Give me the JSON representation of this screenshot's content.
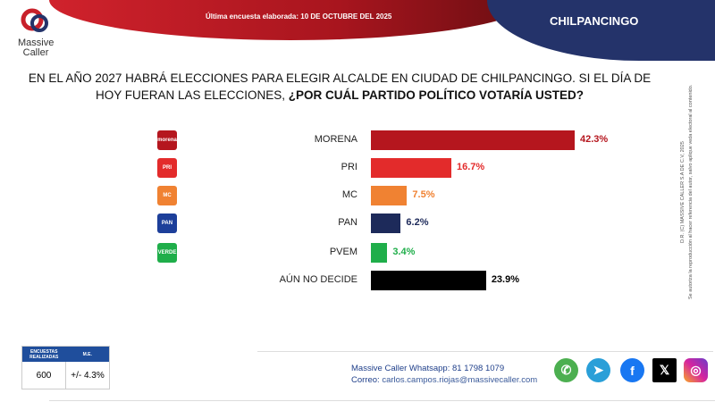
{
  "header": {
    "survey_date": "Última encuesta elaborada: 10 DE OCTUBRE DEL 2025",
    "city": "CHILPANCINGO",
    "logo_line1": "Massive",
    "logo_line2": "Caller"
  },
  "question": {
    "text": "EN EL AÑO 2027 HABRÁ ELECCIONES PARA ELEGIR ALCALDE EN CIUDAD DE CHILPANCINGO. SI EL DÍA DE HOY FUERAN LAS ELECCIONES,",
    "emphasis": "¿POR CUÁL PARTIDO POLÍTICO VOTARÍA USTED?"
  },
  "chart_data": {
    "type": "bar",
    "orientation": "horizontal",
    "categories": [
      "MORENA",
      "PRI",
      "MC",
      "PAN",
      "PVEM",
      "AÚN NO DECIDE"
    ],
    "values": [
      42.3,
      16.7,
      7.5,
      6.2,
      3.4,
      23.9
    ],
    "value_labels": [
      "42.3%",
      "16.7%",
      "7.5%",
      "6.2%",
      "3.4%",
      "23.9%"
    ],
    "colors": [
      "#b5161e",
      "#e32b2b",
      "#f08232",
      "#1d2a5a",
      "#1fae4a",
      "#000000"
    ],
    "label_colors": [
      "#b5161e",
      "#e32b2b",
      "#f08232",
      "#1d2a5a",
      "#1fae4a",
      "#000000"
    ],
    "icons": [
      {
        "text": "morena",
        "bg": "#b5161e"
      },
      {
        "text": "PRI",
        "bg": "#e32b2b"
      },
      {
        "text": "MC",
        "bg": "#f08232"
      },
      {
        "text": "PAN",
        "bg": "#1d3f9a"
      },
      {
        "text": "VERDE",
        "bg": "#1fae4a"
      },
      null
    ],
    "xlim": [
      0,
      50
    ]
  },
  "copyright": {
    "line1": "D.R. (C) MASSIVE CALLER S.A DE C.V, 2025",
    "line2": "Se autoriza la reproducción al hacer referencia del autor, salvo aplique veda electoral al contenido."
  },
  "stats": {
    "h1": "ENCUESTAS REALIZADAS",
    "h2": "M.E.",
    "v1": "600",
    "v2": "+/- 4.3%"
  },
  "contact": {
    "wa_label": "Massive Caller Whatsapp:",
    "wa_value": "81 1798 1079",
    "mail_label": "Correo:",
    "mail_value": "carlos.campos.riojas@massivecaller.com"
  },
  "social": [
    {
      "name": "whatsapp",
      "color": "#4caf50"
    },
    {
      "name": "telegram",
      "color": "#2a9fd8"
    },
    {
      "name": "facebook",
      "color": "#1877f2"
    },
    {
      "name": "x",
      "color": "#000000"
    },
    {
      "name": "instagram",
      "color": "#d6249f"
    }
  ]
}
